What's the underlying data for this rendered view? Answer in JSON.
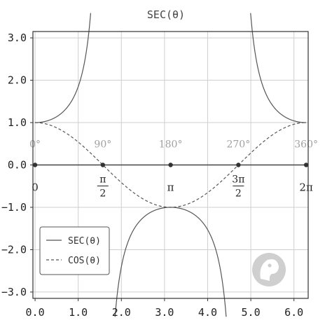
{
  "chart_data": {
    "type": "line",
    "title": "SEC(θ)",
    "xlim": [
      -0.05,
      6.33
    ],
    "ylim": [
      -3.15,
      3.15
    ],
    "x_ticks": [
      {
        "value": 0.0,
        "label": "0.0"
      },
      {
        "value": 1.0,
        "label": "1.0"
      },
      {
        "value": 2.0,
        "label": "2.0"
      },
      {
        "value": 3.0,
        "label": "3.0"
      },
      {
        "value": 4.0,
        "label": "4.0"
      },
      {
        "value": 5.0,
        "label": "5.0"
      },
      {
        "value": 6.0,
        "label": "6.0"
      }
    ],
    "y_ticks": [
      {
        "value": 3.0,
        "label": "3.0"
      },
      {
        "value": 2.0,
        "label": "2.0"
      },
      {
        "value": 1.0,
        "label": "1.0"
      },
      {
        "value": 0.0,
        "label": "0.0"
      },
      {
        "value": -1.0,
        "label": "−1.0"
      },
      {
        "value": -2.0,
        "label": "−2.0"
      },
      {
        "value": -3.0,
        "label": "−3.0"
      }
    ],
    "grid": true,
    "series": [
      {
        "name": "SEC(θ)",
        "function": "sec",
        "style": "solid",
        "color": "#555555"
      },
      {
        "name": "COS(θ)",
        "function": "cos",
        "style": "dashed",
        "color": "#555555"
      }
    ],
    "series_samples": {
      "x": [
        0,
        0.5236,
        1.0472,
        1.5708,
        2.0944,
        2.618,
        3.1416,
        3.6652,
        4.1888,
        4.7124,
        5.236,
        5.7596,
        6.2832
      ],
      "cos": [
        1.0,
        0.866,
        0.5,
        0.0,
        -0.5,
        -0.866,
        -1.0,
        -0.866,
        -0.5,
        0.0,
        0.5,
        0.866,
        1.0
      ],
      "sec": [
        1.0,
        1.155,
        2.0,
        null,
        -2.0,
        -1.155,
        -1.0,
        -1.155,
        -2.0,
        null,
        2.0,
        1.155,
        1.0
      ]
    },
    "legend_placement": "bottom-left",
    "axis_markers": [
      {
        "value": 0,
        "degree_label": "0°",
        "radian_label": "0"
      },
      {
        "value": 1.5708,
        "degree_label": "90°",
        "radian_num": "π",
        "radian_den": "2"
      },
      {
        "value": 3.1416,
        "degree_label": "180°",
        "radian_label": "π"
      },
      {
        "value": 4.7124,
        "degree_label": "270°",
        "radian_num": "3π",
        "radian_den": "2"
      },
      {
        "value": 6.2832,
        "degree_label": "360°",
        "radian_label": "2π"
      }
    ],
    "logo_icon": "emoji-face-logo"
  }
}
